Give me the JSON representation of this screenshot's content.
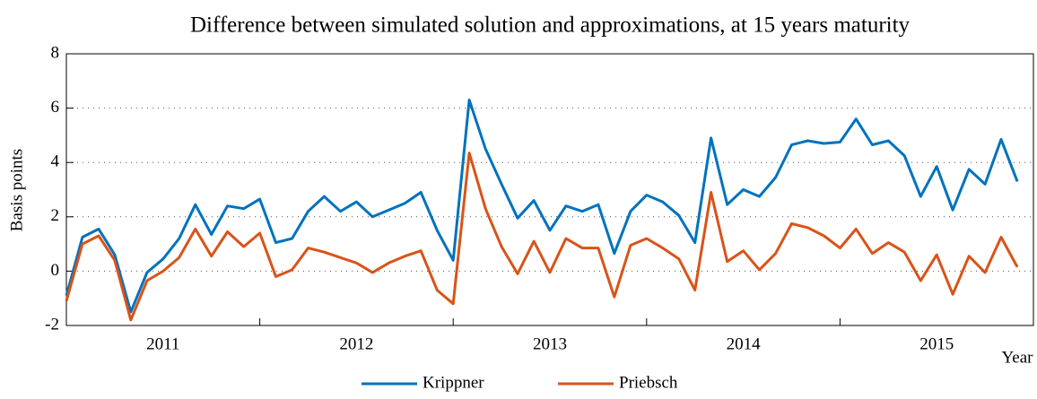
{
  "chart_data": {
    "type": "line",
    "title": "Difference between simulated solution and approximations, at 15 years maturity",
    "y_label": "Basis points",
    "x_label": "Year",
    "x": [
      2011.0,
      2011.083,
      2011.167,
      2011.25,
      2011.333,
      2011.417,
      2011.5,
      2011.583,
      2011.667,
      2011.75,
      2011.833,
      2011.917,
      2012.0,
      2012.083,
      2012.167,
      2012.25,
      2012.333,
      2012.417,
      2012.5,
      2012.583,
      2012.667,
      2012.75,
      2012.833,
      2012.917,
      2013.0,
      2013.083,
      2013.167,
      2013.25,
      2013.333,
      2013.417,
      2013.5,
      2013.583,
      2013.667,
      2013.75,
      2013.833,
      2013.917,
      2014.0,
      2014.083,
      2014.167,
      2014.25,
      2014.333,
      2014.417,
      2014.5,
      2014.583,
      2014.667,
      2014.75,
      2014.833,
      2014.917,
      2015.0,
      2015.083,
      2015.167,
      2015.25,
      2015.333,
      2015.417,
      2015.5,
      2015.583,
      2015.667,
      2015.75,
      2015.833,
      2015.917
    ],
    "series": [
      {
        "name": "Krippner",
        "color": "#0072bd",
        "values": [
          -0.9,
          1.25,
          1.55,
          0.6,
          -1.5,
          -0.05,
          0.45,
          1.2,
          2.45,
          1.35,
          2.4,
          2.3,
          2.65,
          1.05,
          1.2,
          2.2,
          2.75,
          2.2,
          2.55,
          2.0,
          2.25,
          2.5,
          2.9,
          1.5,
          0.4,
          6.3,
          4.5,
          3.2,
          1.95,
          2.6,
          1.5,
          2.4,
          2.2,
          2.45,
          0.65,
          2.2,
          2.8,
          2.55,
          2.05,
          1.05,
          4.9,
          2.45,
          3.0,
          2.75,
          3.45,
          4.65,
          4.8,
          4.7,
          4.75,
          5.6,
          4.65,
          4.8,
          4.25,
          2.75,
          3.85,
          2.25,
          3.75,
          3.2,
          4.85,
          3.3
        ]
      },
      {
        "name": "Priebsch",
        "color": "#d95319",
        "values": [
          -1.1,
          1.0,
          1.3,
          0.4,
          -1.8,
          -0.35,
          0.0,
          0.5,
          1.55,
          0.55,
          1.45,
          0.9,
          1.4,
          -0.2,
          0.05,
          0.85,
          0.7,
          0.5,
          0.3,
          -0.05,
          0.3,
          0.55,
          0.75,
          -0.7,
          -1.2,
          4.35,
          2.3,
          0.9,
          -0.1,
          1.1,
          -0.05,
          1.2,
          0.85,
          0.85,
          -0.95,
          0.95,
          1.2,
          0.85,
          0.45,
          -0.7,
          2.9,
          0.35,
          0.75,
          0.05,
          0.65,
          1.75,
          1.6,
          1.3,
          0.85,
          1.55,
          0.65,
          1.05,
          0.7,
          -0.35,
          0.6,
          -0.85,
          0.55,
          -0.05,
          1.25,
          0.15
        ]
      }
    ],
    "xlim": [
      2011,
      2016
    ],
    "xticks": [
      2012,
      2013,
      2014,
      2015
    ],
    "year_labels": [
      2011,
      2012,
      2013,
      2014,
      2015
    ],
    "ylim": [
      -2,
      8
    ],
    "yticks": [
      -2,
      0,
      2,
      4,
      6,
      8
    ],
    "grid": true,
    "legend": "bottom"
  }
}
